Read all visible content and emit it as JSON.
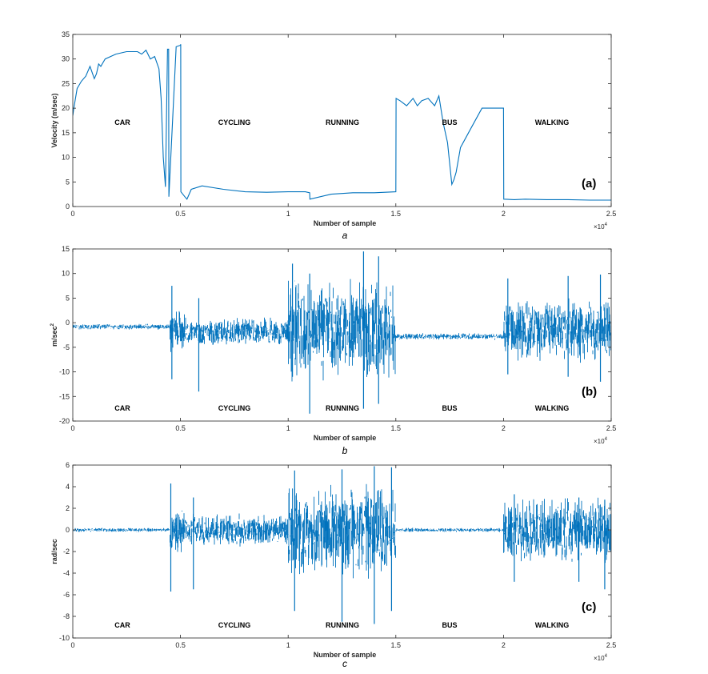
{
  "colors": {
    "line": "#0072BD",
    "axis": "#262626",
    "background": "#ffffff"
  },
  "chart_data": [
    {
      "type": "line",
      "panel_tag": "(a)",
      "caption": "a",
      "xlabel": "Number of sample",
      "ylabel": "Velocity (m/sec)",
      "x_exponent": "×10",
      "x_exponent_power": "4",
      "xlim": [
        0,
        2.5
      ],
      "ylim": [
        0,
        35
      ],
      "xticks": [
        "0",
        "0.5",
        "1",
        "1.5",
        "2",
        "2.5"
      ],
      "yticks": [
        "0",
        "5",
        "10",
        "15",
        "20",
        "25",
        "30",
        "35"
      ],
      "mode_labels": [
        "CAR",
        "CYCLING",
        "RUNNING",
        "BUS",
        "WALKING"
      ],
      "x": [
        0,
        0.005,
        0.02,
        0.04,
        0.06,
        0.08,
        0.1,
        0.11,
        0.12,
        0.13,
        0.15,
        0.2,
        0.25,
        0.3,
        0.32,
        0.34,
        0.36,
        0.38,
        0.4,
        0.41,
        0.42,
        0.43,
        0.44,
        0.445,
        0.446,
        0.48,
        0.5,
        0.501,
        0.502,
        0.52,
        0.53,
        0.55,
        0.6,
        0.7,
        0.8,
        0.9,
        1.0,
        1.08,
        1.1,
        1.101,
        1.2,
        1.3,
        1.4,
        1.5,
        1.501,
        1.52,
        1.55,
        1.58,
        1.6,
        1.62,
        1.65,
        1.68,
        1.7,
        1.72,
        1.74,
        1.76,
        1.77,
        1.78,
        1.8,
        1.85,
        1.9,
        1.95,
        1.99,
        2.0,
        2.001,
        2.05,
        2.1,
        2.2,
        2.3,
        2.4,
        2.5
      ],
      "y": [
        18.5,
        20,
        24,
        25.5,
        26.5,
        28.5,
        26,
        27,
        29,
        28.5,
        30,
        31,
        31.5,
        31.5,
        31,
        31.8,
        30,
        30.5,
        28,
        22,
        10,
        4,
        32,
        32,
        2,
        32.5,
        32.8,
        33,
        3,
        2,
        1.5,
        3.5,
        4.2,
        3.5,
        3,
        2.9,
        3,
        3,
        2.8,
        1.5,
        2.5,
        2.8,
        2.8,
        3,
        22,
        21.5,
        20.5,
        22,
        20.5,
        21.5,
        22,
        20.5,
        22.5,
        17,
        13,
        4.5,
        5.5,
        7,
        12,
        16,
        20,
        20,
        20,
        20,
        1.5,
        1.4,
        1.5,
        1.4,
        1.4,
        1.3,
        1.3
      ]
    },
    {
      "type": "line",
      "panel_tag": "(b)",
      "caption": "b",
      "xlabel": "Number of sample",
      "ylabel": "m/sec",
      "ylabel_power": "2",
      "x_exponent": "×10",
      "x_exponent_power": "4",
      "xlim": [
        0,
        2.5
      ],
      "ylim": [
        -20,
        15
      ],
      "xticks": [
        "0",
        "0.5",
        "1",
        "1.5",
        "2",
        "2.5"
      ],
      "yticks": [
        "-20",
        "-15",
        "-10",
        "-5",
        "0",
        "5",
        "10",
        "15"
      ],
      "mode_labels": [
        "CAR",
        "CYCLING",
        "RUNNING",
        "BUS",
        "WALKING"
      ],
      "segments": [
        {
          "start": 0.0,
          "end": 0.45,
          "center": -0.8,
          "amp": 0.6
        },
        {
          "start": 0.45,
          "end": 0.52,
          "center": -1.5,
          "amp": 5
        },
        {
          "start": 0.52,
          "end": 1.0,
          "center": -1.8,
          "amp": 3
        },
        {
          "start": 1.0,
          "end": 1.5,
          "center": -1.5,
          "amp": 11
        },
        {
          "start": 1.5,
          "end": 2.0,
          "center": -2.8,
          "amp": 0.7
        },
        {
          "start": 2.0,
          "end": 2.5,
          "center": -1.5,
          "amp": 7
        }
      ],
      "spikes": [
        {
          "x": 0.46,
          "min": -11.5,
          "max": 7.5
        },
        {
          "x": 0.585,
          "min": -14,
          "max": 5
        },
        {
          "x": 1.02,
          "min": -11,
          "max": 12
        },
        {
          "x": 1.1,
          "min": -18.5,
          "max": 10
        },
        {
          "x": 1.35,
          "min": -17.5,
          "max": 14.5
        },
        {
          "x": 1.42,
          "min": -16.5,
          "max": 13.5
        },
        {
          "x": 2.02,
          "min": -10.5,
          "max": 9
        },
        {
          "x": 2.3,
          "min": -11,
          "max": 9.5
        },
        {
          "x": 2.45,
          "min": -12,
          "max": 9.8
        }
      ]
    },
    {
      "type": "line",
      "panel_tag": "(c)",
      "caption": "c",
      "xlabel": "Number of sample",
      "ylabel": "rad/sec",
      "x_exponent": "×10",
      "x_exponent_power": "4",
      "xlim": [
        0,
        2.5
      ],
      "ylim": [
        -10,
        6
      ],
      "xticks": [
        "0",
        "0.5",
        "1",
        "1.5",
        "2",
        "2.5"
      ],
      "yticks": [
        "-10",
        "-8",
        "-6",
        "-4",
        "-2",
        "0",
        "2",
        "4",
        "6"
      ],
      "mode_labels": [
        "CAR",
        "CYCLING",
        "RUNNING",
        "BUS",
        "WALKING"
      ],
      "segments": [
        {
          "start": 0.0,
          "end": 0.45,
          "center": 0.0,
          "amp": 0.2
        },
        {
          "start": 0.45,
          "end": 0.52,
          "center": 0.0,
          "amp": 2.5
        },
        {
          "start": 0.52,
          "end": 1.0,
          "center": 0.0,
          "amp": 1.6
        },
        {
          "start": 1.0,
          "end": 1.5,
          "center": 0.0,
          "amp": 4.6
        },
        {
          "start": 1.5,
          "end": 2.0,
          "center": 0.0,
          "amp": 0.2
        },
        {
          "start": 2.0,
          "end": 2.5,
          "center": 0.0,
          "amp": 3.2
        }
      ],
      "spikes": [
        {
          "x": 0.455,
          "min": -5.7,
          "max": 4.3
        },
        {
          "x": 0.56,
          "min": -5.5,
          "max": 3.0
        },
        {
          "x": 1.03,
          "min": -7.5,
          "max": 5.5
        },
        {
          "x": 1.25,
          "min": -8.5,
          "max": 5.6
        },
        {
          "x": 1.4,
          "min": -8.7,
          "max": 5.9
        },
        {
          "x": 1.48,
          "min": -7.5,
          "max": 5.8
        },
        {
          "x": 2.05,
          "min": -4.8,
          "max": 3.3
        },
        {
          "x": 2.35,
          "min": -4.8,
          "max": 3.0
        },
        {
          "x": 2.47,
          "min": -5.5,
          "max": 2.8
        }
      ]
    }
  ]
}
